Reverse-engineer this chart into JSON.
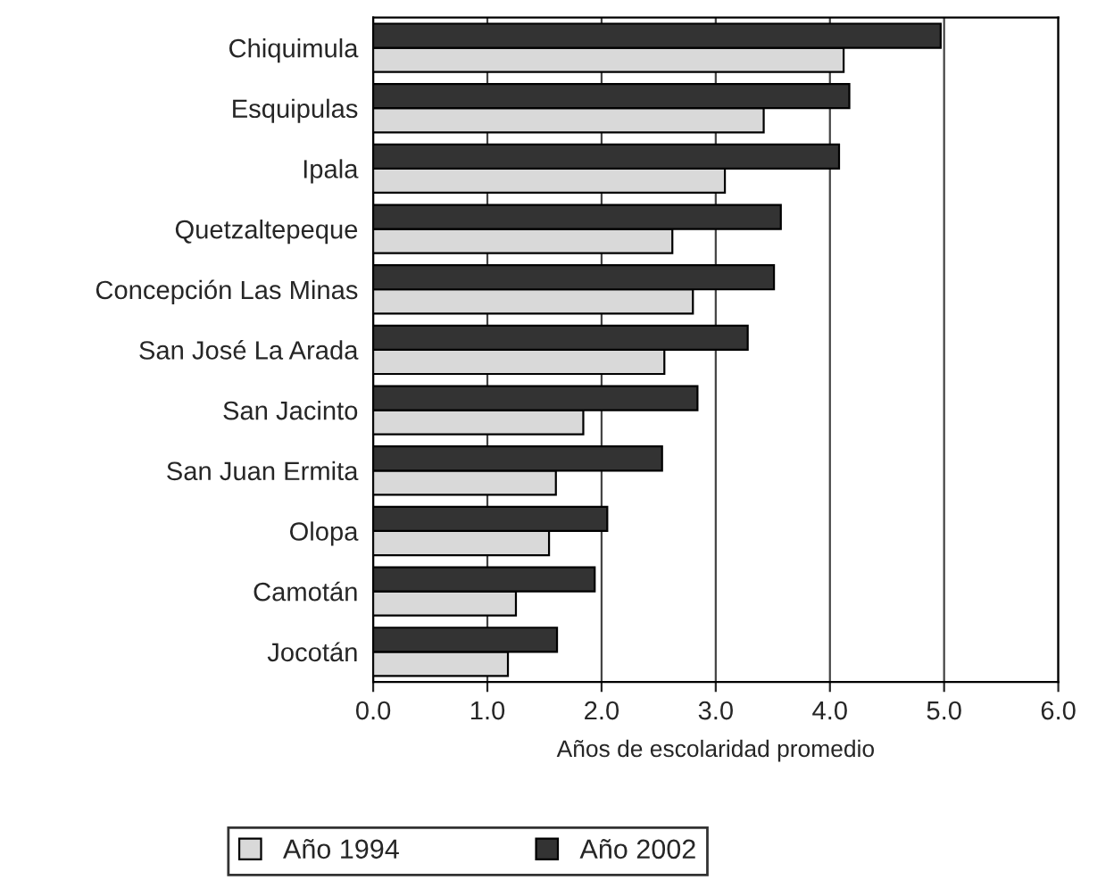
{
  "chart_data": {
    "type": "bar",
    "orientation": "horizontal",
    "xlabel": "Años de escolaridad promedio",
    "categories": [
      "Chiquimula",
      "Esquipulas",
      "Ipala",
      "Quetzaltepeque",
      "Concepción Las Minas",
      "San José La Arada",
      "San Jacinto",
      "San Juan Ermita",
      "Olopa",
      "Camotán",
      "Jocotán"
    ],
    "series": [
      {
        "name": "Año 1994",
        "color": "#d9d9d9",
        "values": [
          4.12,
          3.42,
          3.08,
          2.62,
          2.8,
          2.55,
          1.84,
          1.6,
          1.54,
          1.25,
          1.18
        ]
      },
      {
        "name": "Año 2002",
        "color": "#333333",
        "values": [
          4.97,
          4.17,
          4.08,
          3.57,
          3.51,
          3.28,
          2.84,
          2.53,
          2.05,
          1.94,
          1.61
        ]
      }
    ],
    "xlim": [
      0,
      6
    ],
    "xticks": [
      {
        "value": 0,
        "label": "0.0"
      },
      {
        "value": 1,
        "label": "1.0"
      },
      {
        "value": 2,
        "label": "2.0"
      },
      {
        "value": 3,
        "label": "3.0"
      },
      {
        "value": 4,
        "label": "4.0"
      },
      {
        "value": 5,
        "label": "5.0"
      },
      {
        "value": 6,
        "label": "6.0"
      }
    ],
    "grid": "x",
    "legend": "bottom"
  }
}
